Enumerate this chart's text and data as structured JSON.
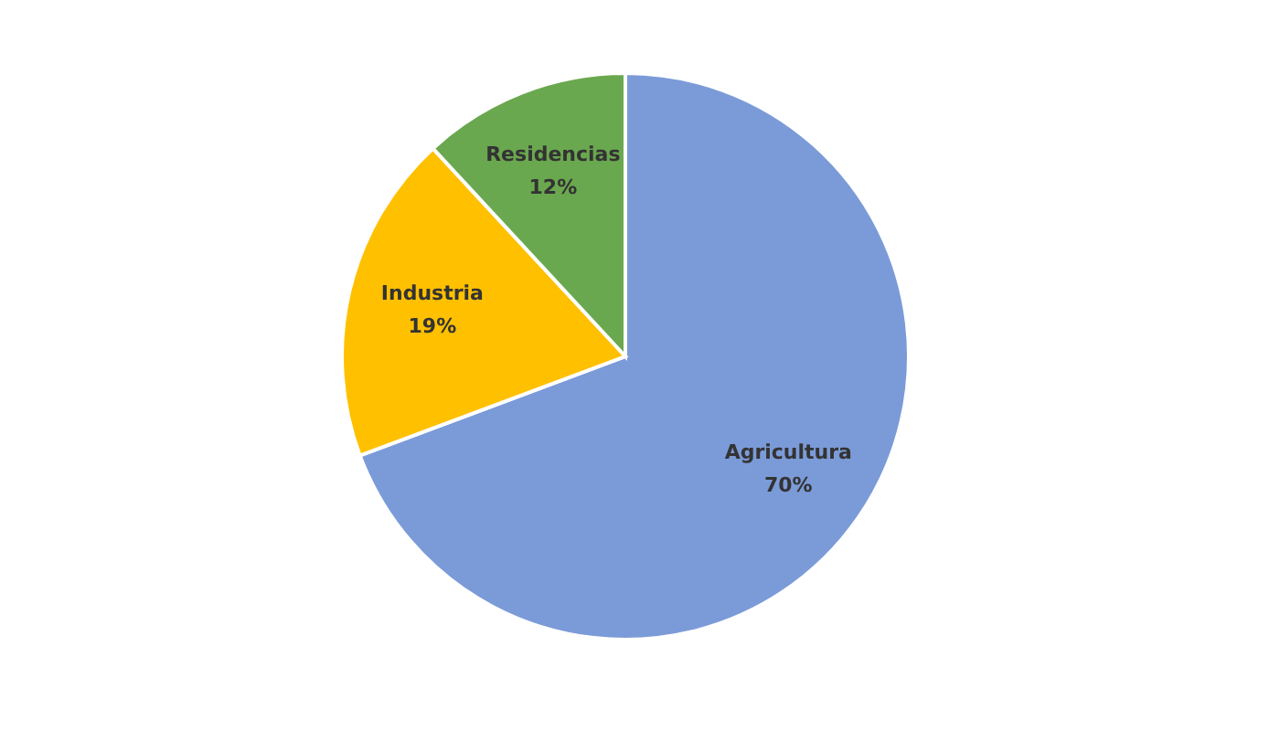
{
  "chart_data": {
    "type": "pie",
    "categories": [
      "Agricultura",
      "Industria",
      "Residencias"
    ],
    "values": [
      70,
      19,
      12
    ],
    "value_labels": [
      "70%",
      "19%",
      "12%"
    ],
    "colors": [
      "#7b9bd8",
      "#ffc000",
      "#6aa84f"
    ],
    "legend": false
  }
}
